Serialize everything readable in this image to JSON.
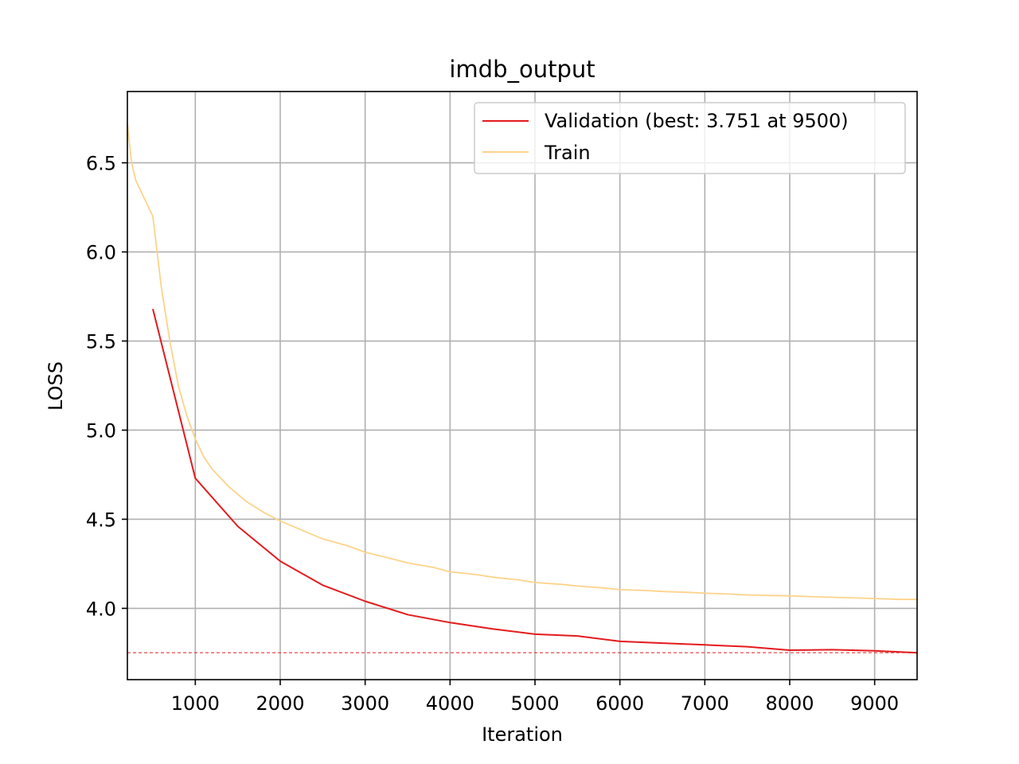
{
  "chart_data": {
    "type": "line",
    "title": "imdb_output",
    "xlabel": "Iteration",
    "ylabel": "LOSS",
    "xlim": [
      200,
      9500
    ],
    "ylim": [
      3.6,
      6.9
    ],
    "xticks": [
      1000,
      2000,
      3000,
      4000,
      5000,
      6000,
      7000,
      8000,
      9000
    ],
    "yticks": [
      4.0,
      4.5,
      5.0,
      5.5,
      6.0,
      6.5
    ],
    "xtick_labels": [
      "1000",
      "2000",
      "3000",
      "4000",
      "5000",
      "6000",
      "7000",
      "8000",
      "9000"
    ],
    "ytick_labels": [
      "4.0",
      "4.5",
      "5.0",
      "5.5",
      "6.0",
      "6.5"
    ],
    "grid": true,
    "legend_position": "top-right",
    "best_line": {
      "y": 3.751,
      "color": "#e41a1c",
      "style": "dashed"
    },
    "series": [
      {
        "name": "Validation (best: 3.751 at 9500)",
        "color": "#e41a1c",
        "x": [
          500,
          1000,
          1500,
          2000,
          2500,
          3000,
          3500,
          4000,
          4500,
          5000,
          5500,
          6000,
          6500,
          7000,
          7500,
          8000,
          8500,
          9000,
          9500
        ],
        "y": [
          5.68,
          4.73,
          4.46,
          4.265,
          4.13,
          4.04,
          3.965,
          3.92,
          3.885,
          3.855,
          3.845,
          3.815,
          3.805,
          3.795,
          3.785,
          3.765,
          3.768,
          3.762,
          3.751
        ]
      },
      {
        "name": "Train",
        "color": "#fdd38a",
        "x": [
          200,
          250,
          300,
          400,
          500,
          600,
          700,
          800,
          900,
          1000,
          1100,
          1200,
          1400,
          1600,
          1800,
          2000,
          2200,
          2500,
          2800,
          3000,
          3300,
          3500,
          3800,
          4000,
          4300,
          4500,
          4800,
          5000,
          5300,
          5500,
          5800,
          6000,
          6300,
          6500,
          6800,
          7000,
          7300,
          7500,
          7800,
          8000,
          8300,
          8500,
          8800,
          9000,
          9300,
          9500
        ],
        "y": [
          6.72,
          6.5,
          6.4,
          6.3,
          6.2,
          5.8,
          5.5,
          5.25,
          5.08,
          4.95,
          4.85,
          4.78,
          4.68,
          4.6,
          4.54,
          4.49,
          4.45,
          4.39,
          4.35,
          4.315,
          4.28,
          4.255,
          4.23,
          4.205,
          4.19,
          4.175,
          4.16,
          4.145,
          4.135,
          4.125,
          4.115,
          4.105,
          4.1,
          4.095,
          4.09,
          4.085,
          4.08,
          4.075,
          4.072,
          4.07,
          4.065,
          4.062,
          4.058,
          4.055,
          4.05,
          4.05
        ]
      }
    ]
  }
}
